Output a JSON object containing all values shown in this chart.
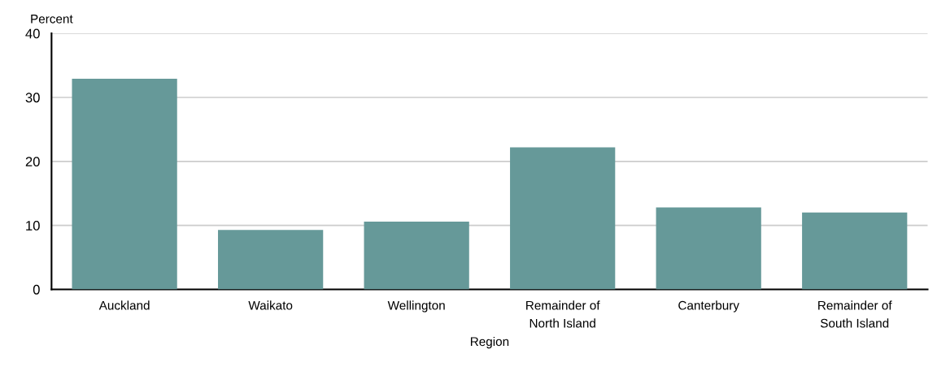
{
  "chart_data": {
    "type": "bar",
    "categories": [
      "Auckland",
      "Waikato",
      "Wellington",
      "Remainder of\nNorth Island",
      "Canterbury",
      "Remainder of\nSouth Island"
    ],
    "values": [
      32.9,
      9.3,
      10.6,
      22.2,
      12.8,
      12.0
    ],
    "color": "#669999",
    "xlabel": "Region",
    "ylabel": "Percent",
    "ylim": [
      0,
      40
    ],
    "yticks": [
      0,
      10,
      20,
      30,
      40
    ],
    "grid": "y"
  }
}
